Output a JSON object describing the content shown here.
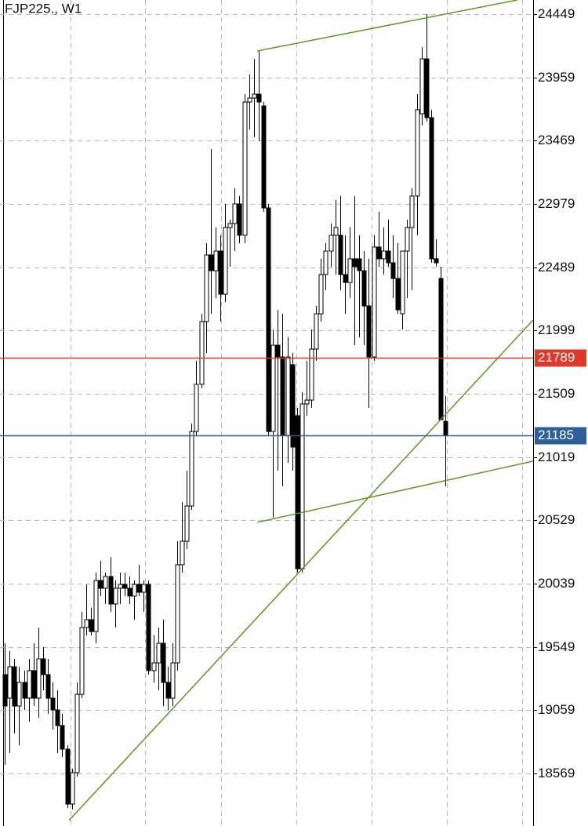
{
  "chart_data": {
    "type": "candlestick",
    "title": "FJP225., W1",
    "open": [
      19334,
      19152,
      19395,
      19091,
      19274,
      19152,
      19365,
      19152,
      19456,
      19334,
      19152,
      19061,
      18940,
      18757,
      18332,
      18575,
      19182,
      19699,
      19760,
      19668,
      20063,
      20003,
      20094,
      19881,
      20003,
      20033,
      20003,
      19942,
      20033,
      19972,
      20033,
      19365,
      19425,
      19577,
      19274,
      19152,
      19425,
      20185,
      20367,
      20640,
      21217,
      21582,
      22068,
      22584,
      22462,
      22614,
      22280,
      22796,
      22827,
      22979,
      22736,
      23768,
      23799,
      23829,
      23738,
      22948,
      21217,
      21885,
      21794,
      21187,
      21734,
      21339,
      20154,
      21430,
      21460,
      21855,
      22128,
      22432,
      22614,
      22736,
      22736,
      22432,
      22371,
      22554,
      22554,
      22462,
      22189,
      21794,
      22645,
      22554,
      22614,
      22523,
      22402,
      22128,
      22614,
      22796,
      23040,
      23677,
      24102,
      23647,
      22554,
      22402,
      21296
    ],
    "high": [
      19577,
      19516,
      19456,
      19395,
      19365,
      19456,
      19577,
      19699,
      19547,
      19456,
      19274,
      19213,
      19031,
      18787,
      18605,
      19274,
      19820,
      20033,
      19851,
      20124,
      20215,
      20124,
      20245,
      20063,
      20124,
      20124,
      20094,
      20063,
      20185,
      20063,
      20063,
      19638,
      19699,
      19760,
      19395,
      19577,
      20367,
      20671,
      20914,
      21278,
      21764,
      22128,
      22675,
      23404,
      22796,
      22736,
      22979,
      22857,
      23100,
      23040,
      23829,
      23981,
      24102,
      24163,
      23768,
      22979,
      22007,
      22159,
      22128,
      21946,
      21825,
      21400,
      21521,
      21764,
      22007,
      22189,
      22554,
      22675,
      22827,
      23009,
      23040,
      22736,
      22796,
      23040,
      22736,
      22614,
      22554,
      22736,
      22918,
      22796,
      22857,
      22736,
      22675,
      22554,
      22857,
      23100,
      23829,
      24194,
      24449,
      23708,
      22706,
      22493,
      21491
    ],
    "low": [
      18636,
      18727,
      18879,
      18787,
      19061,
      18970,
      19091,
      19000,
      19213,
      19031,
      18909,
      18727,
      18696,
      18302,
      18290,
      18545,
      19152,
      19638,
      19638,
      19577,
      19942,
      19881,
      19820,
      19699,
      19881,
      19942,
      19881,
      19760,
      19942,
      19820,
      19334,
      19274,
      19213,
      19091,
      19061,
      19091,
      19365,
      20124,
      20306,
      20610,
      21187,
      21551,
      21825,
      22128,
      22250,
      22068,
      22220,
      22493,
      22614,
      22675,
      22675,
      23556,
      23495,
      23465,
      22918,
      21187,
      20549,
      20914,
      20792,
      20974,
      20914,
      20124,
      20124,
      21339,
      21400,
      21764,
      22068,
      22311,
      22493,
      22432,
      22311,
      22128,
      22250,
      21885,
      21946,
      21885,
      21400,
      21764,
      22493,
      22432,
      22493,
      22250,
      22128,
      22007,
      22250,
      22311,
      22736,
      23586,
      23617,
      22523,
      22493,
      21308,
      20792
    ],
    "close": [
      19091,
      19395,
      19091,
      19274,
      19152,
      19365,
      19152,
      19456,
      19334,
      19152,
      19061,
      18940,
      18757,
      18332,
      18575,
      19182,
      19699,
      19760,
      19668,
      20063,
      20003,
      20094,
      19881,
      20003,
      20033,
      20003,
      19942,
      20033,
      19972,
      20033,
      19365,
      19425,
      19577,
      19274,
      19152,
      19425,
      20185,
      20367,
      20640,
      21217,
      21582,
      22068,
      22584,
      22462,
      22614,
      22280,
      22796,
      22827,
      22979,
      22736,
      23768,
      23799,
      23829,
      23768,
      22948,
      21217,
      21885,
      21794,
      21187,
      21794,
      21096,
      20154,
      21430,
      21460,
      21855,
      22128,
      22432,
      22614,
      22736,
      22796,
      22432,
      22371,
      22554,
      22493,
      22462,
      22189,
      21794,
      22645,
      22554,
      22614,
      22523,
      22402,
      22159,
      22614,
      22796,
      23040,
      23708,
      24102,
      23647,
      22554,
      22523,
      21308,
      21187
    ],
    "ylim": [
      18162,
      24558
    ],
    "xlim": [
      -1,
      110.3
    ],
    "yticks": [
      24449,
      23959,
      23469,
      22979,
      22489,
      21999,
      21509,
      21019,
      20529,
      20039,
      19549,
      19059,
      18569
    ],
    "xgrid": [
      13.7,
      29.3,
      45.2,
      60.9,
      76.6,
      92.3,
      108
    ],
    "grid": true,
    "price_lines": [
      {
        "value": 21789,
        "color": "#e0392b"
      },
      {
        "value": 21185,
        "color": "#2f5f98"
      }
    ],
    "trendlines": [
      {
        "x": [
          52.7,
          107
        ],
        "y": [
          24163,
          24558
        ]
      },
      {
        "x": [
          52.7,
          110.3
        ],
        "y": [
          20513,
          20987
        ]
      },
      {
        "x": [
          13.4,
          110.3
        ],
        "y": [
          18205,
          22080
        ]
      }
    ],
    "trend_color": "#5a9a1e"
  }
}
